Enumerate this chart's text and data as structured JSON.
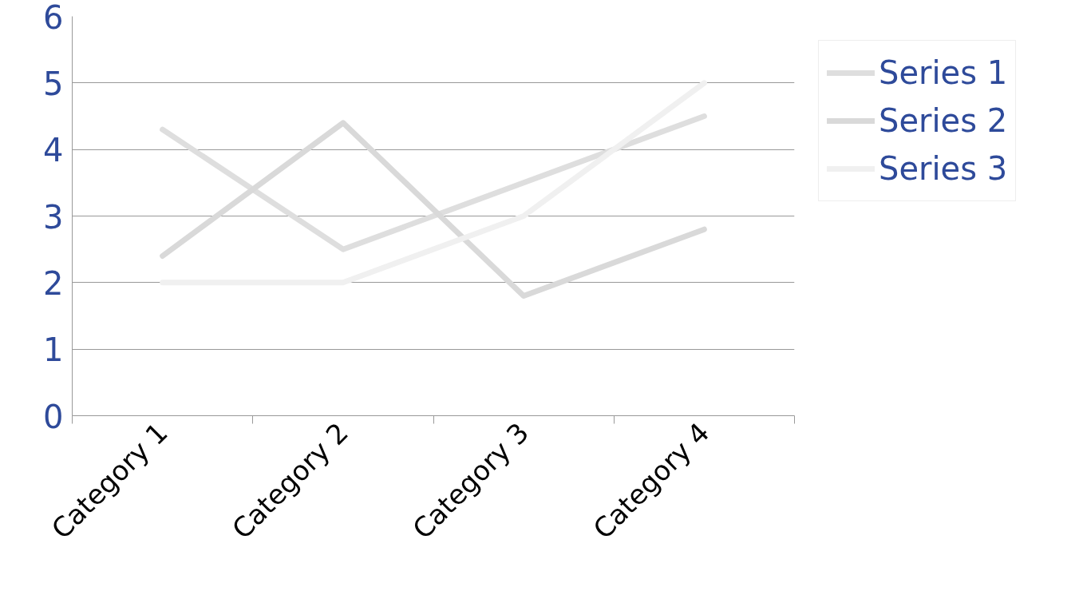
{
  "chart_data": {
    "type": "line",
    "categories": [
      "Category 1",
      "Category 2",
      "Category 3",
      "Category 4"
    ],
    "series": [
      {
        "name": "Series 1",
        "color": "#dedede",
        "values": [
          4.3,
          2.5,
          3.5,
          4.5
        ]
      },
      {
        "name": "Series 2",
        "color": "#d9d9d9",
        "values": [
          2.4,
          4.4,
          1.8,
          2.8
        ]
      },
      {
        "name": "Series 3",
        "color": "#f0f0f0",
        "values": [
          2,
          2,
          3,
          5
        ]
      }
    ],
    "ylim": [
      0,
      6
    ],
    "yticks": [
      0,
      1,
      2,
      3,
      4,
      5,
      6
    ],
    "grid": "y",
    "legend": "right",
    "marker": "none",
    "line_style": "solid"
  }
}
